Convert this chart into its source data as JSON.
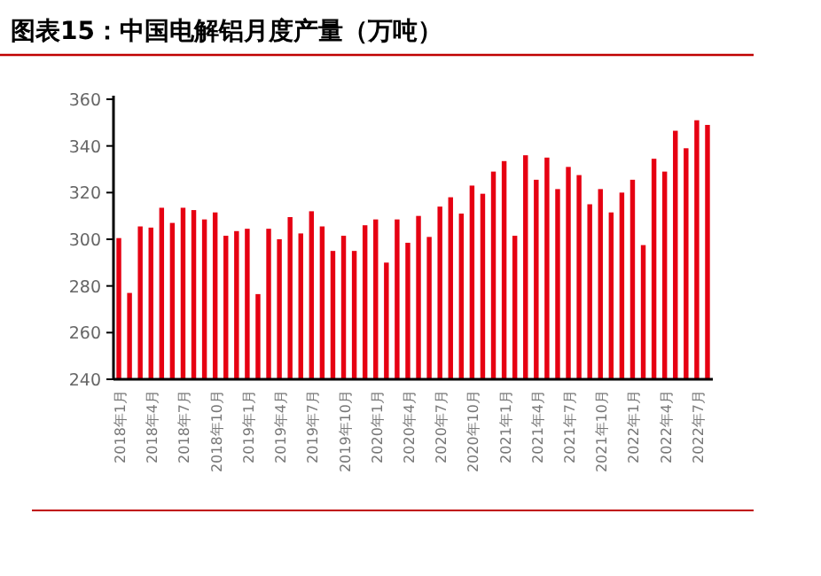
{
  "chart_data": {
    "type": "bar",
    "title": "图表15：中国电解铝月度产量（万吨）",
    "categories": [
      "2018年1月",
      null,
      null,
      "2018年4月",
      null,
      null,
      "2018年7月",
      null,
      null,
      "2018年10月",
      null,
      null,
      "2019年1月",
      null,
      null,
      "2019年4月",
      null,
      null,
      "2019年7月",
      null,
      null,
      "2019年10月",
      null,
      null,
      "2020年1月",
      null,
      null,
      "2020年4月",
      null,
      null,
      "2020年7月",
      null,
      null,
      "2020年10月",
      null,
      null,
      "2021年1月",
      null,
      null,
      "2021年4月",
      null,
      null,
      "2021年7月",
      null,
      null,
      "2021年10月",
      null,
      null,
      "2022年1月",
      null,
      null,
      "2022年4月",
      null,
      null,
      "2022年7月",
      null
    ],
    "values": [
      300.5,
      277,
      305.5,
      305,
      313.5,
      307,
      313.5,
      312.5,
      308.5,
      311.5,
      301.5,
      303.5,
      304.5,
      276.5,
      304.5,
      300,
      309.5,
      302.5,
      312,
      305.5,
      295,
      301.5,
      295,
      306,
      308.5,
      290,
      308.5,
      298.5,
      310,
      301,
      314,
      318,
      311,
      323,
      319.5,
      329,
      333.5,
      301.5,
      336,
      325.5,
      335,
      321.5,
      331,
      327.5,
      315,
      321.5,
      311.5,
      320,
      325.5,
      297.5,
      334.5,
      329,
      346.5,
      339,
      351,
      349
    ],
    "color": "#e60012",
    "ylim": [
      240,
      360
    ],
    "yticks": [
      240,
      260,
      280,
      300,
      320,
      340,
      360
    ],
    "grid": false
  }
}
